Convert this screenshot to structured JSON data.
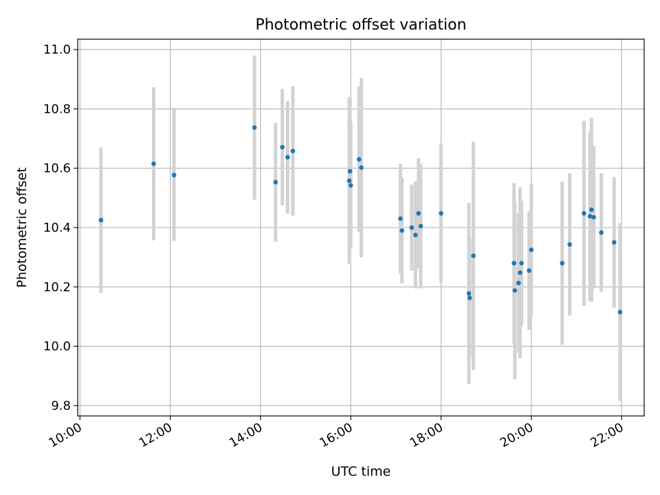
{
  "chart_data": {
    "type": "scatter",
    "title": "Photometric offset variation",
    "xlabel": "UTC time",
    "ylabel": "Photometric offset",
    "x_axis_type": "time",
    "xlim": [
      "09:57",
      "22:30"
    ],
    "ylim": [
      9.765,
      11.035
    ],
    "grid": true,
    "x_ticks": [
      "10:00",
      "12:00",
      "14:00",
      "16:00",
      "18:00",
      "20:00",
      "22:00"
    ],
    "y_ticks": [
      "9.8",
      "10.0",
      "10.2",
      "10.4",
      "10.6",
      "10.8",
      "11.0"
    ],
    "y_tick_values": [
      9.8,
      10.0,
      10.2,
      10.4,
      10.6,
      10.8,
      11.0
    ],
    "marker_color": "#1f77b4",
    "errorbar_color": "#d3d3d3",
    "series": [
      {
        "points": [
          {
            "x": "10:28",
            "y": 10.425,
            "err": 0.245
          },
          {
            "x": "11:38",
            "y": 10.615,
            "err": 0.258
          },
          {
            "x": "12:05",
            "y": 10.577,
            "err": 0.222
          },
          {
            "x": "13:52",
            "y": 10.737,
            "err": 0.243
          },
          {
            "x": "14:20",
            "y": 10.553,
            "err": 0.2
          },
          {
            "x": "14:29",
            "y": 10.671,
            "err": 0.196
          },
          {
            "x": "14:36",
            "y": 10.637,
            "err": 0.19
          },
          {
            "x": "14:43",
            "y": 10.658,
            "err": 0.218
          },
          {
            "x": "15:58",
            "y": 10.558,
            "err": 0.28
          },
          {
            "x": "15:59",
            "y": 10.59,
            "err": 0.25
          },
          {
            "x": "16:00",
            "y": 10.542,
            "err": 0.21
          },
          {
            "x": "16:11",
            "y": 10.63,
            "err": 0.245
          },
          {
            "x": "16:14",
            "y": 10.602,
            "err": 0.302
          },
          {
            "x": "17:06",
            "y": 10.43,
            "err": 0.185
          },
          {
            "x": "17:08",
            "y": 10.39,
            "err": 0.178
          },
          {
            "x": "17:21",
            "y": 10.4,
            "err": 0.145
          },
          {
            "x": "17:26",
            "y": 10.375,
            "err": 0.18
          },
          {
            "x": "17:30",
            "y": 10.448,
            "err": 0.185
          },
          {
            "x": "17:33",
            "y": 10.405,
            "err": 0.21
          },
          {
            "x": "18:00",
            "y": 10.448,
            "err": 0.235
          },
          {
            "x": "18:37",
            "y": 10.178,
            "err": 0.305
          },
          {
            "x": "18:38",
            "y": 10.163,
            "err": 0.2
          },
          {
            "x": "18:43",
            "y": 10.305,
            "err": 0.385
          },
          {
            "x": "19:37",
            "y": 10.28,
            "err": 0.27
          },
          {
            "x": "19:38",
            "y": 10.188,
            "err": 0.3
          },
          {
            "x": "19:43",
            "y": 10.213,
            "err": 0.235
          },
          {
            "x": "19:45",
            "y": 10.248,
            "err": 0.288
          },
          {
            "x": "19:47",
            "y": 10.28,
            "err": 0.21
          },
          {
            "x": "19:57",
            "y": 10.255,
            "err": 0.2
          },
          {
            "x": "20:00",
            "y": 10.325,
            "err": 0.222
          },
          {
            "x": "20:41",
            "y": 10.28,
            "err": 0.275
          },
          {
            "x": "20:51",
            "y": 10.343,
            "err": 0.24
          },
          {
            "x": "21:10",
            "y": 10.448,
            "err": 0.312
          },
          {
            "x": "21:18",
            "y": 10.438,
            "err": 0.285
          },
          {
            "x": "21:20",
            "y": 10.46,
            "err": 0.31
          },
          {
            "x": "21:23",
            "y": 10.435,
            "err": 0.24
          },
          {
            "x": "21:33",
            "y": 10.383,
            "err": 0.2
          },
          {
            "x": "21:50",
            "y": 10.35,
            "err": 0.22
          },
          {
            "x": "21:58",
            "y": 10.115,
            "err": 0.3
          }
        ]
      }
    ]
  }
}
